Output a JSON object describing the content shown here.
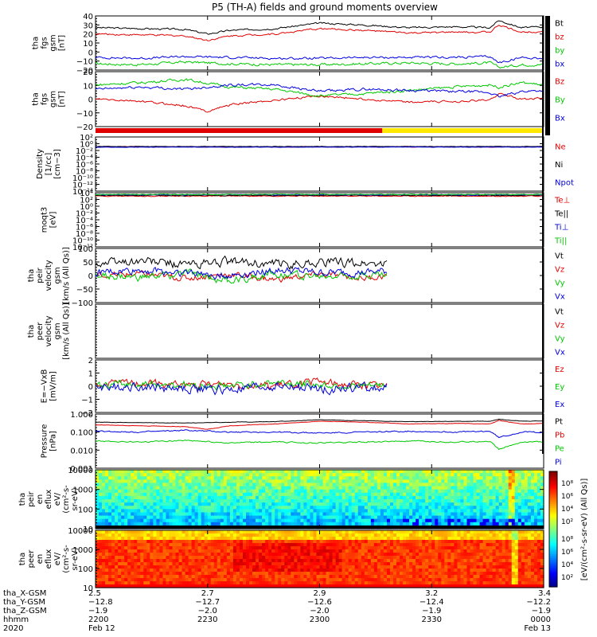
{
  "title": "P5 (TH-A) fields and ground moments overview",
  "colors": {
    "black": "#000000",
    "red": "#e00000",
    "green": "#00c800",
    "blue": "#0000e0",
    "yellow": "#ffe800"
  },
  "chart_data": [
    {
      "type": "line",
      "ylabel": [
        "tha",
        "fgs",
        "gsm",
        "[nT]"
      ],
      "ylim": [
        -20,
        40
      ],
      "yticks": [
        "40",
        "30",
        "20",
        "10",
        "0",
        "−10",
        "−20"
      ],
      "series": [
        {
          "name": "Bt",
          "color": "#000000",
          "x": [
            0,
            0.1,
            0.2,
            0.25,
            0.3,
            0.4,
            0.5,
            0.6,
            0.7,
            0.8,
            0.88,
            0.9,
            0.95,
            1
          ],
          "values": [
            27,
            26,
            25,
            20,
            24,
            26,
            32,
            30,
            27,
            28,
            27,
            35,
            27,
            28
          ],
          "noise": 0.8
        },
        {
          "name": "bz",
          "color": "#e00000",
          "x": [
            0,
            0.1,
            0.2,
            0.25,
            0.3,
            0.4,
            0.5,
            0.6,
            0.7,
            0.8,
            0.88,
            0.9,
            0.95,
            1
          ],
          "values": [
            20,
            19,
            18,
            13,
            18,
            20,
            26,
            24,
            21,
            22,
            22,
            30,
            22,
            23
          ],
          "noise": 0.8
        },
        {
          "name": "by",
          "color": "#00c800",
          "x": [
            0,
            0.1,
            0.2,
            0.3,
            0.4,
            0.5,
            0.6,
            0.7,
            0.8,
            0.88,
            0.9,
            0.95,
            1
          ],
          "values": [
            -13,
            -14,
            -11,
            -13,
            -14,
            -14,
            -13,
            -12,
            -13,
            -12,
            -17,
            -14,
            -14
          ],
          "noise": 1.2
        },
        {
          "name": "bx",
          "color": "#0000e0",
          "x": [
            0,
            0.1,
            0.2,
            0.3,
            0.4,
            0.5,
            0.6,
            0.7,
            0.8,
            0.88,
            0.9,
            0.95,
            1
          ],
          "values": [
            -6,
            -7,
            -5,
            -6,
            -7,
            -7,
            -6,
            -6,
            -6,
            -5,
            -12,
            -6,
            -7
          ],
          "noise": 1.0
        }
      ]
    },
    {
      "type": "line",
      "ylabel": [
        "tha",
        "fgs",
        "gsm",
        "[nT]"
      ],
      "ylim": [
        -30,
        20
      ],
      "yticks": [
        "20",
        "10",
        "0",
        "−10",
        "−20"
      ],
      "series": [
        {
          "name": "Bz",
          "color": "#e00000",
          "x": [
            0,
            0.1,
            0.2,
            0.25,
            0.3,
            0.4,
            0.5,
            0.6,
            0.7,
            0.8,
            0.88,
            0.9,
            0.95,
            1
          ],
          "values": [
            -5,
            -7,
            -11,
            -16,
            -10,
            -6,
            -2,
            -5,
            -8,
            -7,
            -6,
            0,
            -5,
            -4
          ],
          "noise": 0.8
        },
        {
          "name": "By",
          "color": "#00c800",
          "x": [
            0,
            0.1,
            0.2,
            0.3,
            0.4,
            0.5,
            0.6,
            0.7,
            0.8,
            0.88,
            0.9,
            0.95,
            1
          ],
          "values": [
            8,
            10,
            13,
            6,
            4,
            -2,
            0,
            3,
            6,
            8,
            6,
            10,
            8
          ],
          "noise": 1.0
        },
        {
          "name": "Bx",
          "color": "#0000e0",
          "x": [
            0,
            0.1,
            0.2,
            0.3,
            0.4,
            0.5,
            0.6,
            0.7,
            0.8,
            0.88,
            0.9,
            0.95,
            1
          ],
          "values": [
            4,
            6,
            4,
            8,
            8,
            2,
            4,
            3,
            2,
            1,
            -3,
            2,
            3
          ],
          "noise": 1.0
        }
      ]
    },
    {
      "type": "line",
      "ylabel": [
        "Density",
        "[1/cc]",
        "[cm−3]"
      ],
      "log": true,
      "ylim": [
        -14,
        3
      ],
      "yticks": [
        "10²",
        "10⁰",
        "10⁻²",
        "10⁻⁴",
        "10⁻⁶",
        "10⁻⁸",
        "10⁻¹⁰",
        "10⁻¹²",
        "10⁻¹⁴"
      ],
      "series": [
        {
          "name": "Ne",
          "color": "#e00000",
          "x": [
            0,
            1
          ],
          "values": [
            -0.1,
            -0.1
          ],
          "noise": 0.1
        },
        {
          "name": "Ni",
          "color": "#000000",
          "x": [
            0,
            1
          ],
          "values": [
            0,
            0
          ],
          "noise": 0.05
        },
        {
          "name": "Npot",
          "color": "#0000e0",
          "x": [
            0,
            1
          ],
          "values": [
            -0.2,
            -0.2
          ],
          "noise": 0.05
        }
      ]
    },
    {
      "type": "line",
      "ylabel": [
        "moqt3",
        "[eV]"
      ],
      "log": true,
      "ylim": [
        -12,
        4
      ],
      "yticks": [
        "10⁴",
        "10²",
        "10⁰",
        "10⁻²",
        "10⁻⁴",
        "10⁻⁶",
        "10⁻⁸",
        "10⁻¹⁰",
        "10⁻¹²"
      ],
      "series": [
        {
          "name": "Te⊥",
          "color": "#e00000",
          "x": [
            0,
            1
          ],
          "values": [
            3.0,
            3.0
          ],
          "noise": 0.1
        },
        {
          "name": "Te||",
          "color": "#000000",
          "x": [
            0,
            1
          ],
          "values": [
            3.2,
            3.2
          ],
          "noise": 0.1
        },
        {
          "name": "Ti⊥",
          "color": "#0000e0",
          "x": [
            0,
            1
          ],
          "values": [
            3.4,
            3.4
          ],
          "noise": 0.1
        },
        {
          "name": "Ti||",
          "color": "#00c800",
          "x": [
            0,
            1
          ],
          "values": [
            3.5,
            3.5
          ],
          "noise": 0.1
        }
      ]
    },
    {
      "type": "line",
      "ylabel": [
        "tha",
        "peir",
        "velocity",
        "gsm",
        "[km/s (All Qs)]"
      ],
      "ylim": [
        -100,
        100
      ],
      "yticks": [
        "100",
        "50",
        "0",
        "−50",
        "−100"
      ],
      "xmax": 0.65,
      "series": [
        {
          "name": "Vt",
          "color": "#000000",
          "x": [
            0,
            0.1,
            0.2,
            0.3,
            0.4,
            0.5,
            0.6,
            0.65
          ],
          "values": [
            45,
            55,
            40,
            50,
            40,
            50,
            45,
            40
          ],
          "noise": 14
        },
        {
          "name": "Vz",
          "color": "#e00000",
          "x": [
            0,
            0.1,
            0.2,
            0.3,
            0.4,
            0.5,
            0.6,
            0.65
          ],
          "values": [
            0,
            5,
            -10,
            5,
            -15,
            5,
            -10,
            0
          ],
          "noise": 10
        },
        {
          "name": "Vy",
          "color": "#00c800",
          "x": [
            0,
            0.1,
            0.2,
            0.3,
            0.4,
            0.5,
            0.6,
            0.65
          ],
          "values": [
            0,
            -10,
            10,
            -20,
            10,
            -5,
            5,
            0
          ],
          "noise": 12
        },
        {
          "name": "Vx",
          "color": "#0000e0",
          "x": [
            0,
            0.1,
            0.2,
            0.3,
            0.4,
            0.5,
            0.6,
            0.65
          ],
          "values": [
            10,
            20,
            10,
            0,
            20,
            10,
            10,
            15
          ],
          "noise": 12
        }
      ]
    },
    {
      "type": "line",
      "ylabel": [
        "tha",
        "peer",
        "velocity",
        "gsm",
        "[km/s (All Qs)]"
      ],
      "ylim": [
        -100,
        100
      ],
      "yticks": [],
      "series": [
        {
          "name": "Vt",
          "color": "#000000",
          "x": [],
          "values": []
        },
        {
          "name": "Vz",
          "color": "#e00000",
          "x": [],
          "values": []
        },
        {
          "name": "Vy",
          "color": "#00c800",
          "x": [],
          "values": []
        },
        {
          "name": "Vx",
          "color": "#0000e0",
          "x": [],
          "values": []
        }
      ]
    },
    {
      "type": "line",
      "ylabel": [
        "E=−VxB",
        "[mV/m]"
      ],
      "ylim": [
        -2,
        2
      ],
      "yticks": [
        "2",
        "1",
        "0",
        "−1",
        "−2"
      ],
      "xmax": 0.65,
      "series": [
        {
          "name": "Ez",
          "color": "#e00000",
          "x": [
            0,
            0.1,
            0.2,
            0.3,
            0.4,
            0.5,
            0.6,
            0.65
          ],
          "values": [
            0.1,
            0.3,
            0,
            0.2,
            0,
            0.3,
            0.1,
            0
          ],
          "noise": 0.25
        },
        {
          "name": "Ey",
          "color": "#00c800",
          "x": [
            0,
            0.1,
            0.2,
            0.3,
            0.4,
            0.5,
            0.6,
            0.65
          ],
          "values": [
            0,
            0.2,
            0.1,
            0,
            0.3,
            0.1,
            0,
            0
          ],
          "noise": 0.25
        },
        {
          "name": "Ex",
          "color": "#0000e0",
          "x": [
            0,
            0.1,
            0.2,
            0.3,
            0.4,
            0.5,
            0.6,
            0.65
          ],
          "values": [
            -0.1,
            0,
            -0.2,
            -0.3,
            0,
            -0.2,
            -0.1,
            -0.1
          ],
          "noise": 0.3
        }
      ]
    },
    {
      "type": "line",
      "ylabel": [
        "Pressure",
        "[nPa]"
      ],
      "log": true,
      "ylim": [
        -3,
        0
      ],
      "yticks": [
        "1.000",
        "0.100",
        "0.010",
        "0.001"
      ],
      "series": [
        {
          "name": "Pt",
          "color": "#000000",
          "x": [
            0,
            0.1,
            0.2,
            0.3,
            0.4,
            0.5,
            0.6,
            0.7,
            0.8,
            0.88,
            0.9,
            0.95,
            1
          ],
          "values": [
            -0.45,
            -0.47,
            -0.5,
            -0.45,
            -0.42,
            -0.32,
            -0.37,
            -0.42,
            -0.4,
            -0.4,
            -0.28,
            -0.4,
            -0.38
          ],
          "noise": 0.01
        },
        {
          "name": "Pb",
          "color": "#e00000",
          "x": [
            0,
            0.1,
            0.2,
            0.25,
            0.3,
            0.4,
            0.5,
            0.6,
            0.7,
            0.8,
            0.88,
            0.9,
            0.95,
            1
          ],
          "values": [
            -0.6,
            -0.65,
            -0.7,
            -0.85,
            -0.65,
            -0.55,
            -0.4,
            -0.45,
            -0.55,
            -0.52,
            -0.55,
            -0.35,
            -0.55,
            -0.52
          ],
          "noise": 0.01
        },
        {
          "name": "Pe",
          "color": "#00c800",
          "x": [
            0,
            0.1,
            0.2,
            0.3,
            0.4,
            0.5,
            0.6,
            0.7,
            0.8,
            0.88,
            0.9,
            0.95,
            1
          ],
          "values": [
            -1.5,
            -1.55,
            -1.45,
            -1.6,
            -1.55,
            -1.6,
            -1.55,
            -1.5,
            -1.55,
            -1.5,
            -1.95,
            -1.55,
            -1.55
          ],
          "noise": 0.03
        },
        {
          "name": "Pi",
          "color": "#0000e0",
          "x": [
            0,
            0.1,
            0.2,
            0.3,
            0.4,
            0.5,
            0.6,
            0.7,
            0.8,
            0.88,
            0.9,
            0.95,
            1
          ],
          "values": [
            -0.95,
            -1.0,
            -0.9,
            -1.0,
            -1.0,
            -1.05,
            -1.0,
            -0.95,
            -1.0,
            -0.95,
            -1.3,
            -1.0,
            -1.0
          ],
          "noise": 0.03
        }
      ]
    },
    {
      "type": "heatmap",
      "ylabel": [
        "tha",
        "peir",
        "en",
        "eflux",
        "eV/",
        "(cm²-s-",
        "sr-eV)"
      ],
      "log": true,
      "ylim": [
        0.7,
        4.3
      ],
      "yticks": [
        "10000",
        "1000",
        "100",
        "10"
      ],
      "variant": "ion"
    },
    {
      "type": "heatmap",
      "ylabel": [
        "tha",
        "peer",
        "en",
        "eflux",
        "eV/",
        "(cm²-s-",
        "sr-eV)"
      ],
      "log": true,
      "ylim": [
        0.7,
        4.3
      ],
      "yticks": [
        "10000",
        "1000",
        "100",
        "10"
      ],
      "variant": "electron"
    }
  ],
  "colorbar": {
    "ticks": [
      "10⁸",
      "10⁶",
      "10⁴",
      "10²"
    ],
    "label": "[eV/(cm²-s-sr-eV) (All Qs)]"
  },
  "xaxis": {
    "rows": [
      {
        "label": "tha_X-GSM",
        "values": [
          "2.5",
          "2.7",
          "2.9",
          "3.2",
          "3.4"
        ]
      },
      {
        "label": "tha_Y-GSM",
        "values": [
          "−12.8",
          "−12.7",
          "−12.6",
          "−12.4",
          "−12.2"
        ]
      },
      {
        "label": "tha_Z-GSM",
        "values": [
          "−1.9",
          "−2.0",
          "−2.0",
          "−1.9",
          "−1.9"
        ]
      },
      {
        "label": "hhmm",
        "values": [
          "2200",
          "2230",
          "2300",
          "2330",
          "0000"
        ]
      },
      {
        "label": "2020",
        "values": [
          "Feb 12",
          "",
          "",
          "",
          "Feb 13"
        ]
      }
    ]
  }
}
